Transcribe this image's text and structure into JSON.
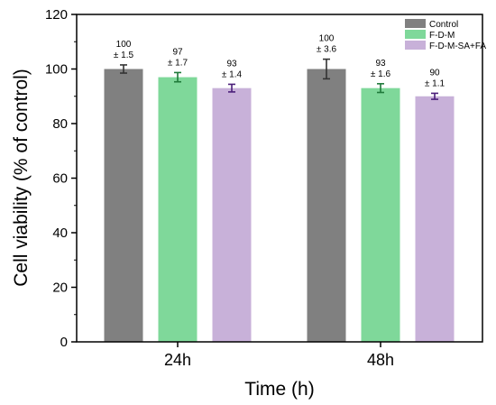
{
  "chart_data": {
    "type": "bar",
    "xlabel": "Time (h)",
    "ylabel": "Cell viability (% of control)",
    "ylim": [
      0,
      120
    ],
    "yticks": [
      0,
      20,
      40,
      60,
      80,
      100,
      120
    ],
    "grid": false,
    "legend_position": "top-right",
    "categories": [
      "24h",
      "48h"
    ],
    "series": [
      {
        "name": "Control",
        "color": "#808080",
        "errorbar_color": "#333333",
        "values": [
          100,
          100
        ],
        "errors": [
          1.5,
          3.6
        ],
        "labels": [
          [
            "100",
            "± 1.5"
          ],
          [
            "100",
            "± 3.6"
          ]
        ]
      },
      {
        "name": "F-D-M",
        "color": "#7fd89a",
        "errorbar_color": "#1f7a3a",
        "values": [
          97,
          93
        ],
        "errors": [
          1.7,
          1.6
        ],
        "labels": [
          [
            "97",
            "± 1.7"
          ],
          [
            "93",
            "± 1.6"
          ]
        ]
      },
      {
        "name": "F-D-M-SA+FA",
        "color": "#c8b1d9",
        "errorbar_color": "#4b1f7a",
        "values": [
          93,
          90
        ],
        "errors": [
          1.4,
          1.1
        ],
        "labels": [
          [
            "93",
            "± 1.4"
          ],
          [
            "90",
            "± 1.1"
          ]
        ]
      }
    ]
  }
}
